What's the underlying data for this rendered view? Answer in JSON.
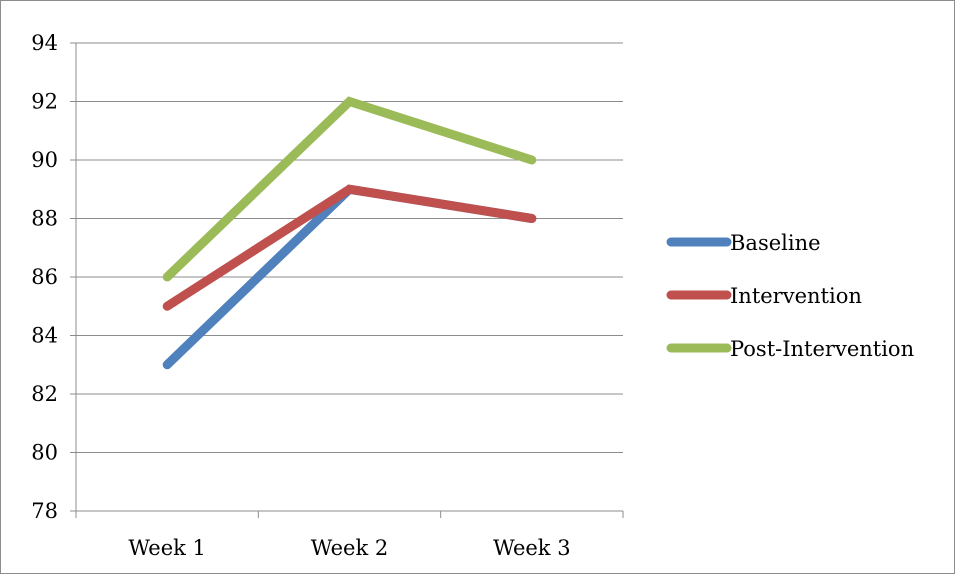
{
  "chart_data": {
    "type": "line",
    "categories": [
      "Week 1",
      "Week 2",
      "Week 3"
    ],
    "series": [
      {
        "name": "Baseline",
        "values": [
          83,
          89,
          88
        ],
        "color": "#4f81bd"
      },
      {
        "name": "Intervention",
        "values": [
          85,
          89,
          88
        ],
        "color": "#c0504d"
      },
      {
        "name": "Post-Intervention",
        "values": [
          86,
          92,
          90
        ],
        "color": "#9bbb59"
      }
    ],
    "title": "",
    "xlabel": "",
    "ylabel": "",
    "ylim": [
      78,
      94
    ],
    "yticks": [
      "78",
      "80",
      "82",
      "84",
      "86",
      "88",
      "90",
      "92",
      "94"
    ],
    "grid": true,
    "legend": "right"
  }
}
